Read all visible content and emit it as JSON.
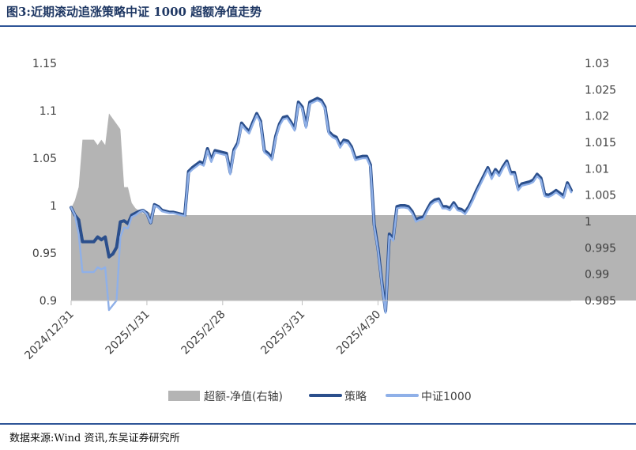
{
  "title": "图3:近期滚动追涨策略中证 1000 超额净值走势",
  "source": "数据来源:Wind 资讯,东吴证券研究所",
  "colors": {
    "excess": "#b4b4b4",
    "strategy": "#2b4f8c",
    "index": "#8fb0e8",
    "rule": "#2e5597",
    "title": "#1f3864"
  },
  "chart_data": {
    "type": "line",
    "x_ticks": [
      "2024/12/31",
      "2025/1/31",
      "2025/2/28",
      "2025/3/31",
      "2025/4/30"
    ],
    "x_tick_index": [
      0,
      20,
      40,
      61,
      81
    ],
    "y_left": {
      "ticks": [
        "0.9",
        "0.95",
        "1",
        "1.05",
        "1.1",
        "1.15"
      ],
      "ylim": [
        0.9,
        1.15
      ]
    },
    "y_right": {
      "ticks": [
        "0.985",
        "0.99",
        "0.995",
        "1",
        "1.005",
        "1.01",
        "1.015",
        "1.02",
        "1.025",
        "1.03"
      ],
      "ylim": [
        0.985,
        1.03
      ]
    },
    "legend": {
      "position": "bottom",
      "entries": [
        "超额-净值(右轴)",
        "策略",
        "中证1000"
      ]
    },
    "series": [
      {
        "name": "超额-净值(右轴)",
        "type": "area",
        "axis": "right",
        "values": [
          1.0025,
          1.004,
          1.0065,
          1.0155,
          1.0155,
          1.0155,
          1.0155,
          1.0145,
          1.0155,
          1.0145,
          1.0205,
          1.0195,
          1.0185,
          1.0175,
          1.0065,
          1.0065,
          1.0035,
          1.0025,
          1.002,
          1.0015,
          1.002,
          1.0015,
          1.0012,
          1.0012,
          1.0012,
          1.0012,
          1.0012,
          1.0012,
          1.0012,
          1.0012,
          1.0012,
          1.0012,
          1.0012,
          1.0012,
          1.0012,
          1.0012,
          1.0012,
          1.0012,
          1.0012,
          1.0012,
          1.0012,
          1.0012,
          1.0012,
          1.0012,
          1.0012,
          1.0012,
          1.0012,
          1.0012,
          1.0012,
          1.0012,
          1.0012,
          1.0012,
          1.0012,
          1.0012,
          1.0012,
          1.0012,
          1.0012,
          1.0012,
          1.0012,
          1.0012,
          1.0012,
          1.0012,
          1.0012,
          1.0012,
          1.0012,
          1.0012,
          1.0012,
          1.0012,
          1.0012,
          1.0012,
          1.0012,
          1.0012,
          1.0012,
          1.0012,
          1.0012,
          1.0012,
          1.0012,
          1.0012,
          1.0012,
          1.0012,
          1.0012,
          1.0012,
          1.0012,
          1.0012,
          1.0012,
          1.0012,
          1.0012,
          1.0012,
          1.0012,
          1.0012,
          1.0012,
          1.0012,
          1.0012,
          1.0012,
          1.0012,
          1.0012,
          1.0012,
          1.0012,
          1.0012,
          1.0012,
          1.0012,
          1.0012,
          1.0012,
          1.0012,
          1.0012,
          1.0012,
          1.0012,
          1.0012,
          1.0012,
          1.0012,
          1.0012,
          1.0012,
          1.0012,
          1.0012,
          1.0012,
          1.0012,
          1.0012,
          1.0012,
          1.0012,
          1.0012,
          1.0012,
          1.0012,
          1.0012,
          1.0012,
          1.0012,
          1.0012,
          1.0012,
          1.0012,
          1.0012,
          1.0012,
          1.0012,
          1.0012,
          1.0012,
          1.0012,
          1.0012,
          1.0012,
          1.0012,
          1.0012,
          1.0012,
          1.0012,
          1.0012,
          1.0012,
          1.0012,
          1.0012,
          1.0012,
          1.0012,
          1.0012,
          1.0012,
          1.0012,
          1.0012,
          1.0012,
          1.0012,
          1.0012,
          1.0012,
          1.0012,
          1.0012,
          1.0012,
          1.0012,
          1.0012,
          1.0012,
          1.0012,
          1.0012,
          1.0012,
          1.0012,
          1.0012,
          1.0012,
          1.0012,
          1.0012,
          1.0012,
          1.0012,
          1.0012,
          1.0012
        ]
      },
      {
        "name": "策略",
        "type": "line",
        "axis": "left",
        "values": [
          0.998,
          0.99,
          0.985,
          0.962,
          0.962,
          0.962,
          0.962,
          0.967,
          0.964,
          0.967,
          0.946,
          0.949,
          0.956,
          0.983,
          0.984,
          0.981,
          0.99,
          0.992,
          0.994,
          0.995,
          0.992,
          0.982,
          1.001,
          0.999,
          0.995,
          0.994,
          0.993,
          0.993,
          0.992,
          0.991,
          0.99,
          1.036,
          1.04,
          1.043,
          1.046,
          1.044,
          1.06,
          1.048,
          1.058,
          1.057,
          1.056,
          1.055,
          1.035,
          1.059,
          1.066,
          1.087,
          1.082,
          1.078,
          1.088,
          1.097,
          1.089,
          1.058,
          1.055,
          1.05,
          1.073,
          1.086,
          1.093,
          1.094,
          1.088,
          1.081,
          1.109,
          1.104,
          1.084,
          1.109,
          1.111,
          1.113,
          1.111,
          1.104,
          1.078,
          1.074,
          1.072,
          1.063,
          1.069,
          1.068,
          1.062,
          1.05,
          1.051,
          1.052,
          1.052,
          1.043,
          0.98,
          0.955,
          0.92,
          0.889,
          0.97,
          0.965,
          0.999,
          1.0,
          1.0,
          0.999,
          0.994,
          0.985,
          0.987,
          0.988,
          0.996,
          1.003,
          1.006,
          1.007,
          0.999,
          0.999,
          0.997,
          1.003,
          0.997,
          0.996,
          0.993,
          0.999,
          1.007,
          1.016,
          1.024,
          1.032,
          1.04,
          1.03,
          1.038,
          1.033,
          1.041,
          1.047,
          1.035,
          1.035,
          1.018,
          1.023,
          1.024,
          1.025,
          1.027,
          1.033,
          1.029,
          1.012,
          1.011,
          1.013,
          1.016,
          1.013,
          1.01,
          1.024,
          1.016
        ]
      },
      {
        "name": "中证1000",
        "type": "line",
        "axis": "left",
        "values": [
          0.998,
          0.99,
          0.97,
          0.93,
          0.93,
          0.93,
          0.93,
          0.935,
          0.933,
          0.935,
          0.89,
          0.895,
          0.9,
          0.967,
          0.977,
          0.976,
          0.988,
          0.99,
          0.993,
          0.995,
          0.991,
          0.982,
          1.0,
          0.998,
          0.994,
          0.993,
          0.992,
          0.992,
          0.991,
          0.99,
          0.989,
          1.034,
          1.038,
          1.041,
          1.044,
          1.042,
          1.058,
          1.046,
          1.056,
          1.055,
          1.054,
          1.053,
          1.033,
          1.057,
          1.064,
          1.085,
          1.08,
          1.076,
          1.086,
          1.095,
          1.087,
          1.056,
          1.053,
          1.048,
          1.071,
          1.084,
          1.091,
          1.092,
          1.086,
          1.079,
          1.107,
          1.102,
          1.082,
          1.107,
          1.109,
          1.111,
          1.109,
          1.102,
          1.076,
          1.072,
          1.07,
          1.061,
          1.067,
          1.066,
          1.06,
          1.048,
          1.049,
          1.05,
          1.05,
          1.041,
          0.978,
          0.953,
          0.918,
          0.887,
          0.968,
          0.963,
          0.997,
          0.998,
          0.998,
          0.997,
          0.992,
          0.983,
          0.985,
          0.986,
          0.994,
          1.001,
          1.004,
          1.005,
          0.997,
          0.997,
          0.995,
          1.001,
          0.995,
          0.994,
          0.991,
          0.997,
          1.005,
          1.014,
          1.022,
          1.03,
          1.038,
          1.028,
          1.036,
          1.031,
          1.039,
          1.045,
          1.033,
          1.033,
          1.016,
          1.021,
          1.022,
          1.023,
          1.025,
          1.031,
          1.027,
          1.01,
          1.009,
          1.011,
          1.014,
          1.011,
          1.008,
          1.022,
          1.014
        ]
      }
    ]
  }
}
